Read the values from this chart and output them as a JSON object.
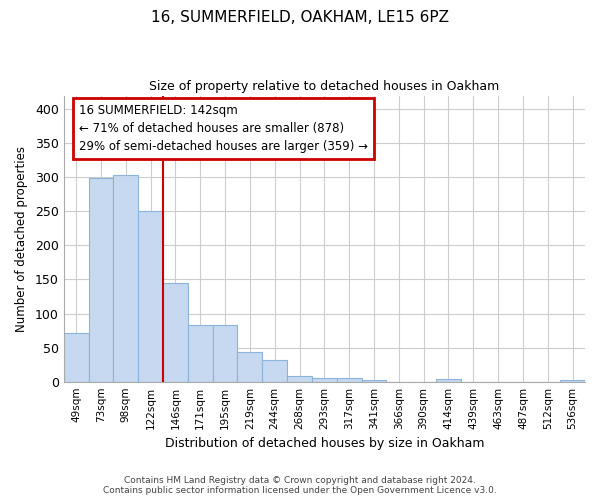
{
  "title1": "16, SUMMERFIELD, OAKHAM, LE15 6PZ",
  "title2": "Size of property relative to detached houses in Oakham",
  "xlabel": "Distribution of detached houses by size in Oakham",
  "ylabel": "Number of detached properties",
  "categories": [
    "49sqm",
    "73sqm",
    "98sqm",
    "122sqm",
    "146sqm",
    "171sqm",
    "195sqm",
    "219sqm",
    "244sqm",
    "268sqm",
    "293sqm",
    "317sqm",
    "341sqm",
    "366sqm",
    "390sqm",
    "414sqm",
    "439sqm",
    "463sqm",
    "487sqm",
    "512sqm",
    "536sqm"
  ],
  "values": [
    72,
    299,
    304,
    250,
    145,
    83,
    83,
    44,
    32,
    9,
    5,
    6,
    3,
    0,
    0,
    4,
    0,
    0,
    0,
    0,
    3
  ],
  "bar_color": "#c6d9f0",
  "bar_edge_color": "#8ab4d9",
  "vline_color": "#cc0000",
  "annotation_text": "16 SUMMERFIELD: 142sqm\n← 71% of detached houses are smaller (878)\n29% of semi-detached houses are larger (359) →",
  "annotation_box_color": "#ffffff",
  "annotation_box_edge_color": "#cc0000",
  "ylim": [
    0,
    420
  ],
  "yticks": [
    0,
    50,
    100,
    150,
    200,
    250,
    300,
    350,
    400
  ],
  "footer1": "Contains HM Land Registry data © Crown copyright and database right 2024.",
  "footer2": "Contains public sector information licensed under the Open Government Licence v3.0.",
  "background_color": "#ffffff",
  "grid_color": "#cccccc"
}
